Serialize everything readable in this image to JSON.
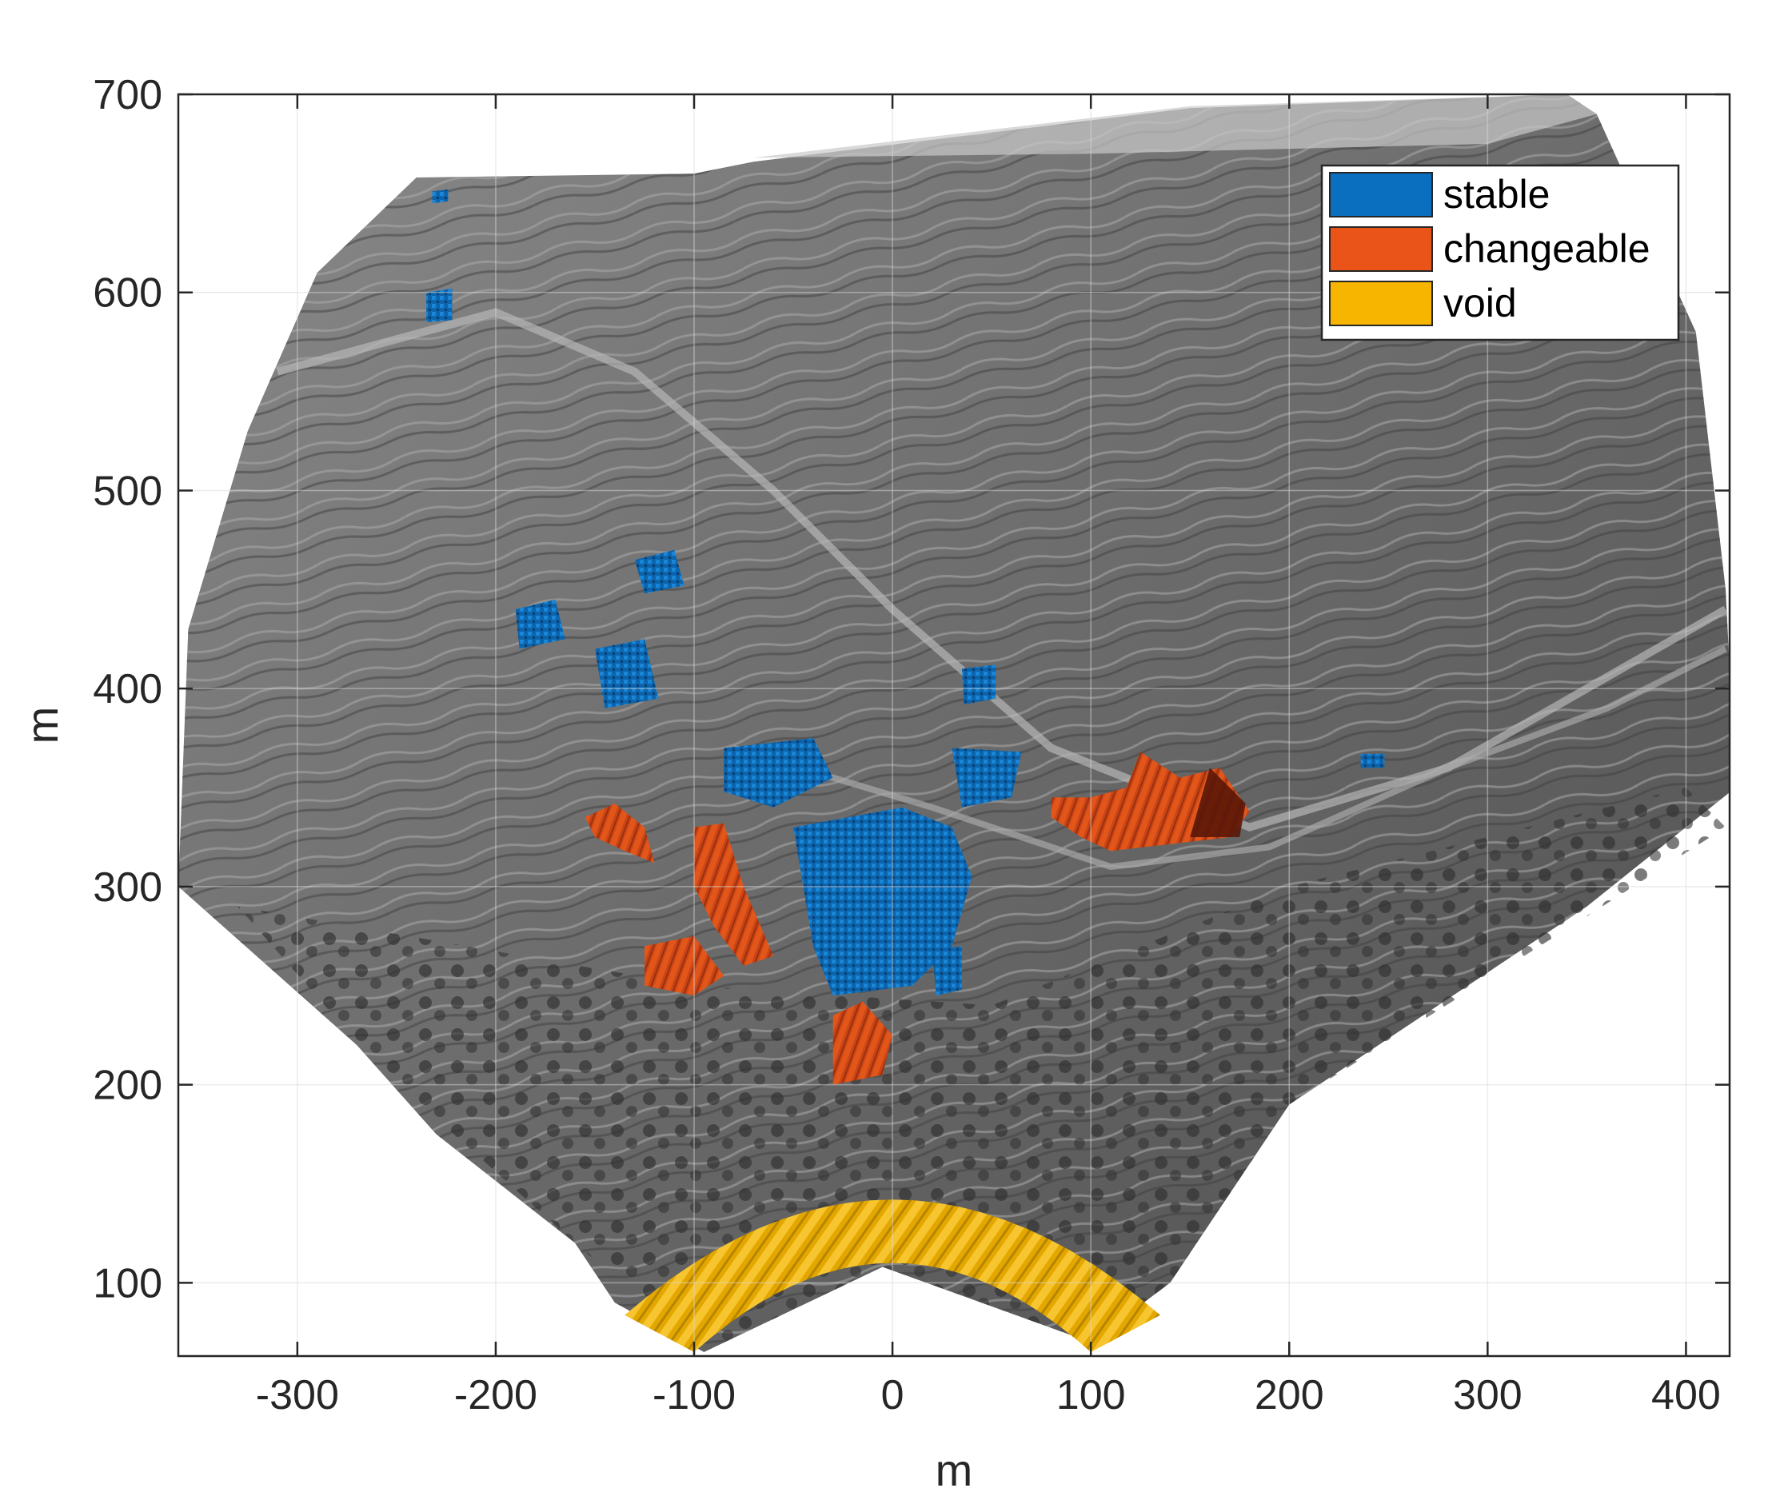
{
  "chart_data": {
    "type": "heatmap",
    "title": "",
    "xlabel": "m",
    "ylabel": "m",
    "xlim": [
      -360,
      422
    ],
    "ylim": [
      63,
      700
    ],
    "x_ticks": [
      -300,
      -200,
      -100,
      0,
      100,
      200,
      300,
      400
    ],
    "y_ticks": [
      100,
      200,
      300,
      400,
      500,
      600,
      700
    ],
    "grid": true,
    "legend_position": "top-right",
    "legend": [
      {
        "label": "stable",
        "color": "#0a6fbf"
      },
      {
        "label": "changeable",
        "color": "#ea5418"
      },
      {
        "label": "void",
        "color": "#f7b500"
      }
    ],
    "background": "grayscale hillshade of terrain"
  }
}
